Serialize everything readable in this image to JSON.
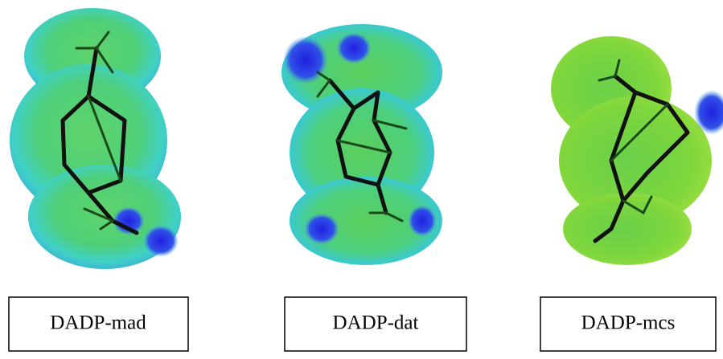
{
  "panels": [
    {
      "label": "DADP-mad"
    },
    {
      "label": "DADP-dat"
    },
    {
      "label": "DADP-mcs"
    }
  ]
}
